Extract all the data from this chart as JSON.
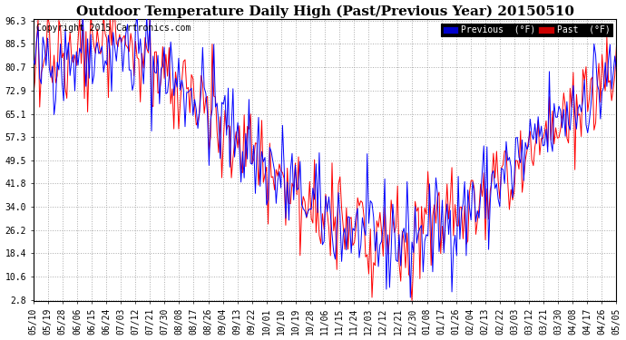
{
  "title": "Outdoor Temperature Daily High (Past/Previous Year) 20150510",
  "copyright": "Copyright 2015 Cartronics.com",
  "ylabel_ticks": [
    2.8,
    10.6,
    18.4,
    26.2,
    34.0,
    41.8,
    49.5,
    57.3,
    65.1,
    72.9,
    80.7,
    88.5,
    96.3
  ],
  "xlabels": [
    "05/10",
    "05/19",
    "05/28",
    "06/06",
    "06/15",
    "06/24",
    "07/03",
    "07/12",
    "07/21",
    "07/30",
    "08/08",
    "08/17",
    "08/26",
    "09/04",
    "09/13",
    "09/22",
    "10/01",
    "10/10",
    "10/19",
    "10/28",
    "11/06",
    "11/15",
    "11/24",
    "12/03",
    "12/12",
    "12/21",
    "12/30",
    "01/08",
    "01/17",
    "01/26",
    "02/04",
    "02/13",
    "02/22",
    "03/03",
    "03/12",
    "03/21",
    "03/30",
    "04/08",
    "04/17",
    "04/26",
    "05/05"
  ],
  "prev_color": "#0000ff",
  "past_color": "#ff0000",
  "bg_color": "#ffffff",
  "grid_color": "#aaaaaa",
  "legend_prev_bg": "#0000cc",
  "legend_past_bg": "#cc0000",
  "title_fontsize": 11,
  "tick_fontsize": 7,
  "copyright_fontsize": 7,
  "figsize": [
    6.9,
    3.75
  ],
  "dpi": 100
}
